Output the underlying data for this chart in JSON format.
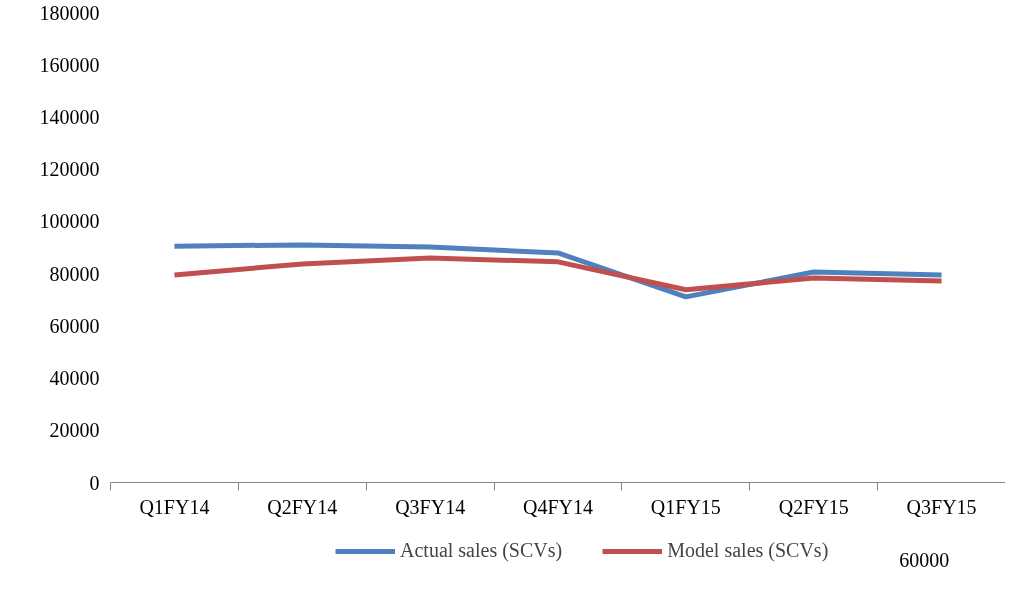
{
  "chart_data": {
    "type": "line",
    "categories": [
      "Q1FY14",
      "Q2FY14",
      "Q3FY14",
      "Q4FY14",
      "Q1FY15",
      "Q2FY15",
      "Q3FY15"
    ],
    "series": [
      {
        "name": "Actual sales (SCVs)",
        "color": "#4f81bd",
        "values": [
          90500,
          91000,
          90200,
          87900,
          71100,
          80600,
          79500
        ]
      },
      {
        "name": "Model sales (SCVs)",
        "color": "#c0504d",
        "values": [
          79500,
          83700,
          86000,
          84500,
          73800,
          78300,
          77200
        ]
      }
    ],
    "ylim": [
      0,
      180000
    ],
    "yticks": [
      0,
      20000,
      40000,
      60000,
      80000,
      100000,
      120000,
      140000,
      160000,
      180000
    ],
    "grid": false,
    "legend": "bottom",
    "marker": "none",
    "line_style": "solid",
    "annotations": [
      "60000"
    ]
  }
}
